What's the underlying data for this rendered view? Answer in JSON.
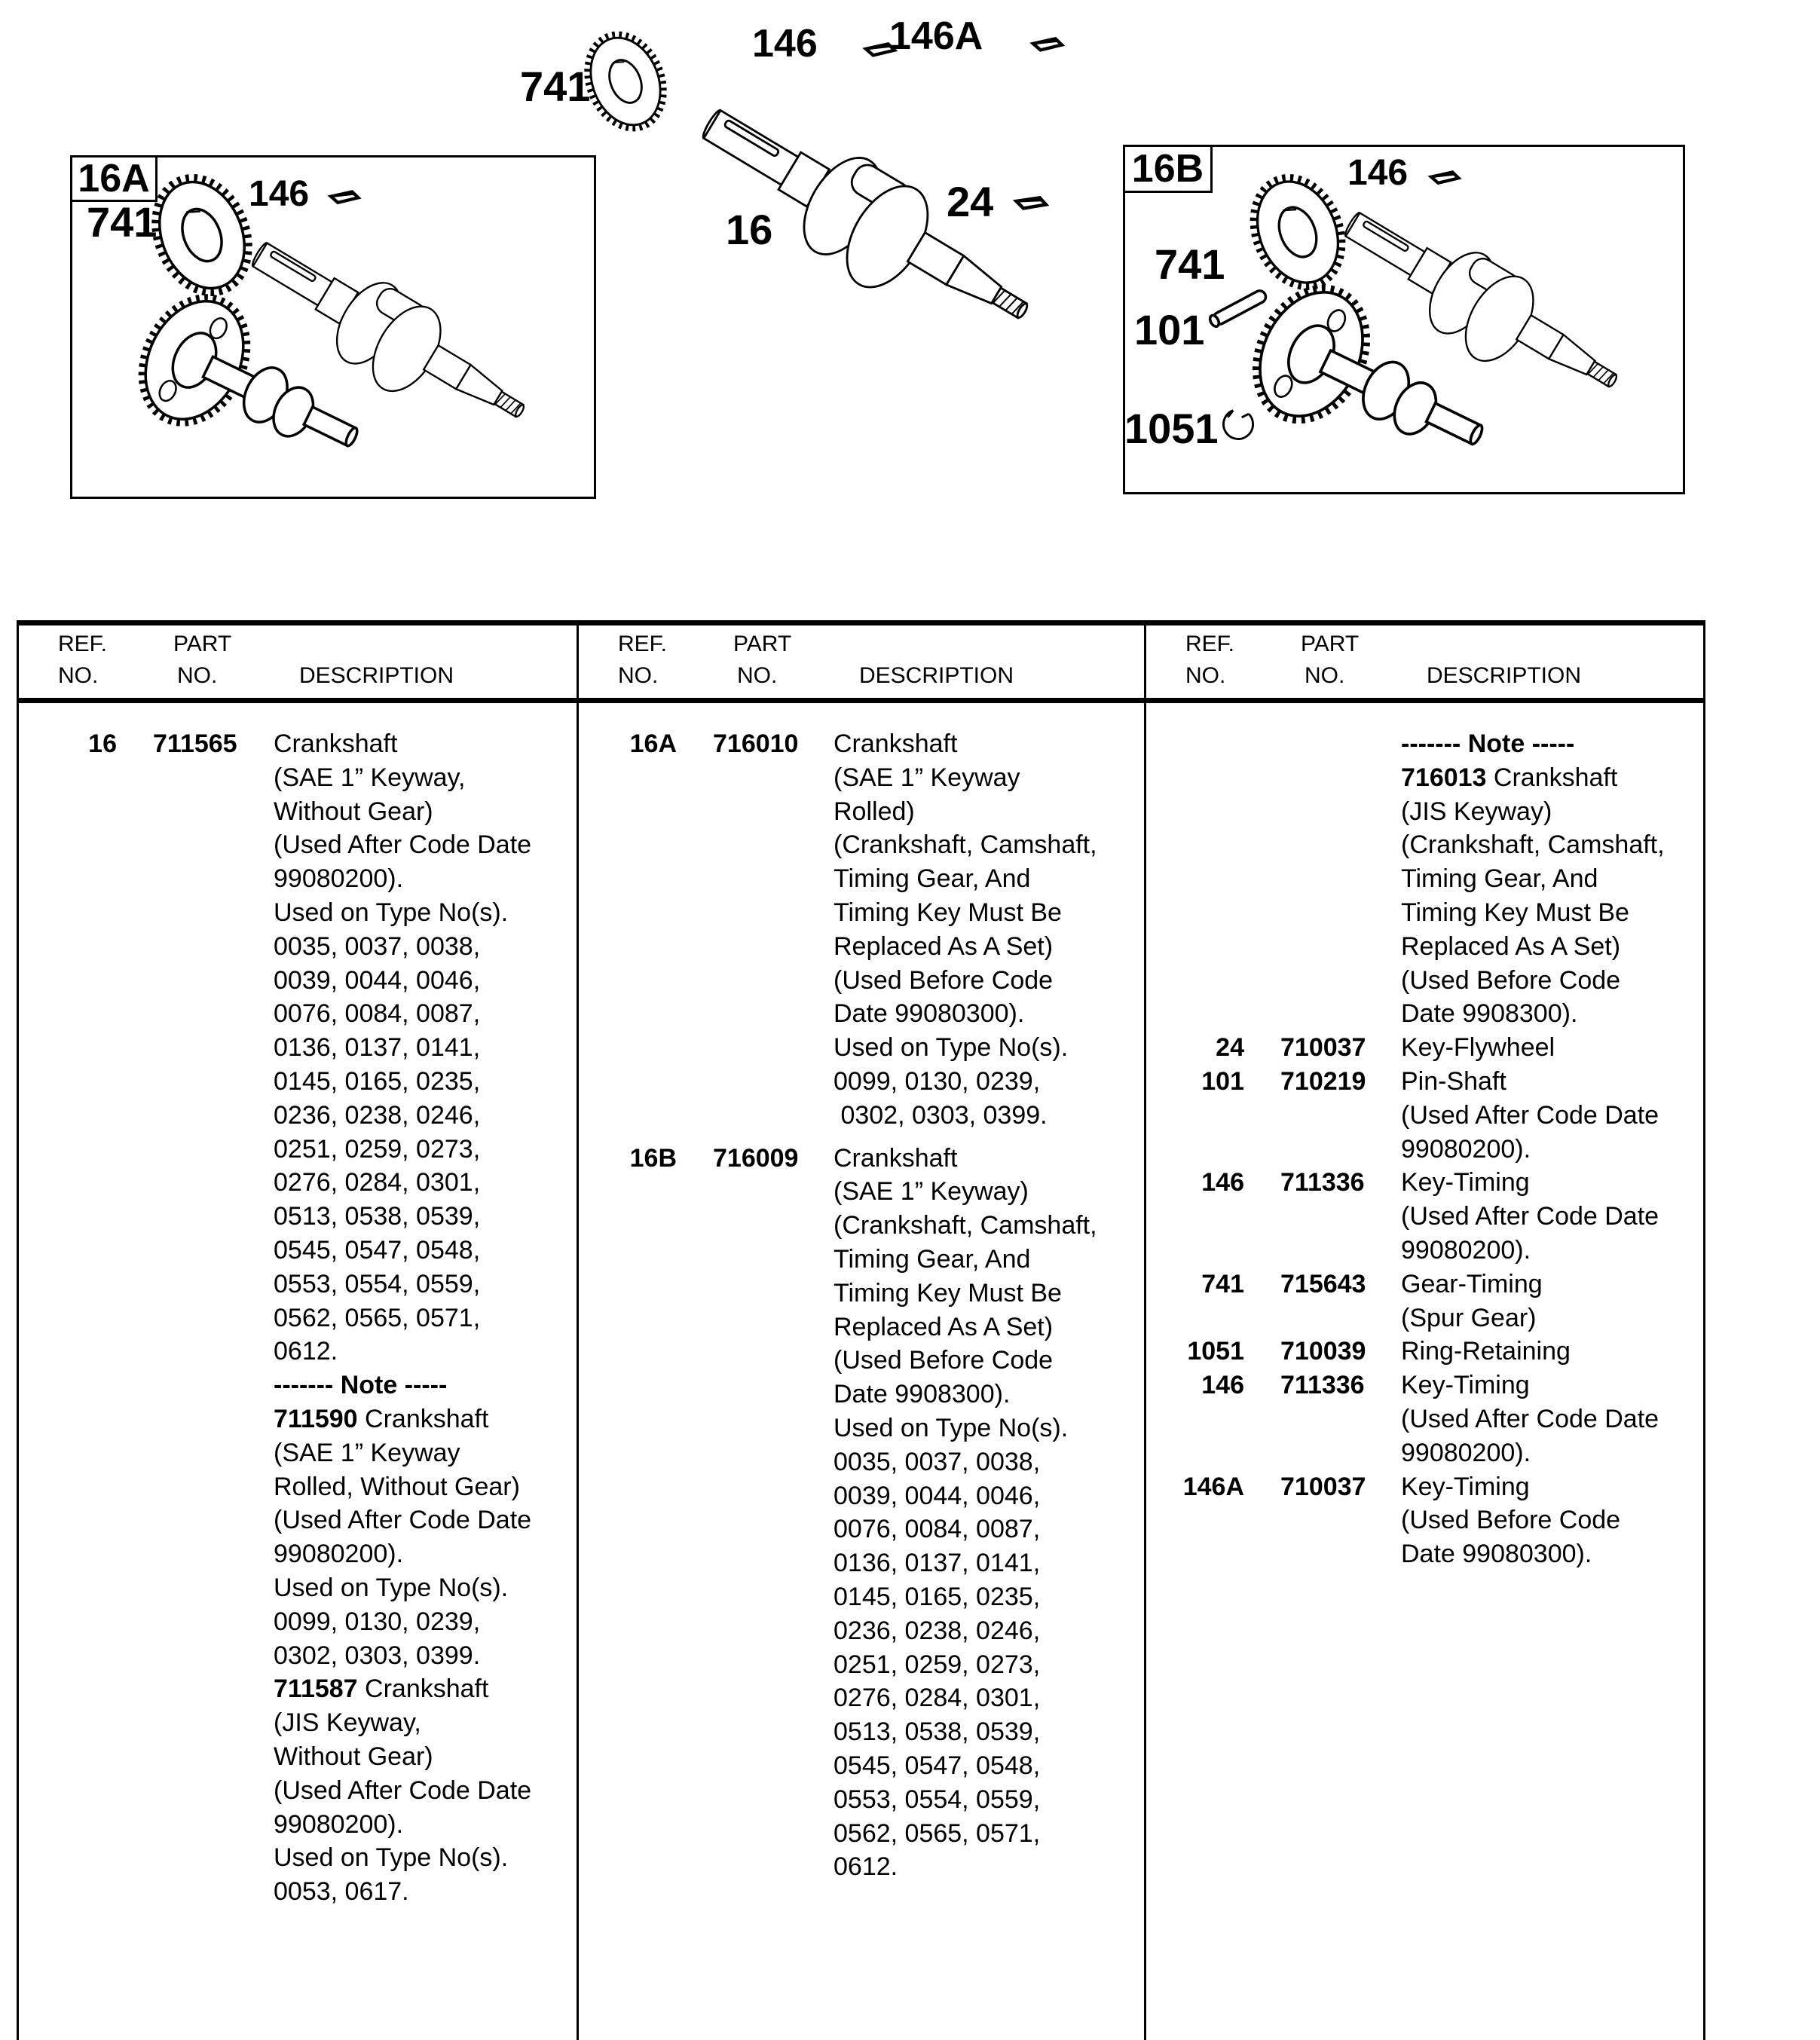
{
  "diagram": {
    "gear_spur_label": "741",
    "key_timing_label": "146",
    "key_timing_a_label": "146A",
    "crankshaft_label": "16",
    "key_flywheel_label": "24",
    "box_16a": {
      "title": "16A",
      "gear_label": "741",
      "key_label": "146"
    },
    "box_16b": {
      "title": "16B",
      "gear_label": "741",
      "key_label": "146",
      "pin_label": "101",
      "ring_label": "1051"
    }
  },
  "table": {
    "header": {
      "ref_line1": "REF.",
      "ref_line2": "NO.",
      "part_line1": "PART",
      "part_line2": "NO.",
      "desc": "DESCRIPTION"
    },
    "panels": [
      {
        "entries": [
          {
            "ref": "16",
            "part": "711565",
            "lines": [
              "Crankshaft",
              "(SAE 1” Keyway,",
              "Without Gear)",
              "(Used After Code Date",
              "99080200).",
              "Used on Type No(s).",
              "0035, 0037, 0038,",
              "0039, 0044, 0046,",
              "0076, 0084, 0087,",
              "0136, 0137, 0141,",
              "0145, 0165, 0235,",
              "0236, 0238, 0246,",
              "0251, 0259, 0273,",
              "0276, 0284, 0301,",
              "0513, 0538, 0539,",
              "0545, 0547, 0548,",
              "0553, 0554, 0559,",
              "0562, 0565, 0571,",
              "0612.",
              {
                "t": "------- Note -----",
                "b": true
              },
              {
                "lead": "711590",
                "t": " Crankshaft"
              },
              "(SAE 1” Keyway",
              "Rolled, Without Gear)",
              "(Used After Code Date",
              "99080200).",
              "Used on Type No(s).",
              "0099, 0130, 0239,",
              "0302, 0303, 0399.",
              {
                "lead": "711587",
                "t": " Crankshaft"
              },
              "(JIS Keyway,",
              "Without Gear)",
              "(Used After Code Date",
              "99080200).",
              "Used on Type No(s).",
              "0053, 0617."
            ]
          }
        ]
      },
      {
        "entries": [
          {
            "ref": "16A",
            "part": "716010",
            "lines": [
              "Crankshaft",
              "(SAE 1” Keyway",
              "Rolled)",
              "(Crankshaft, Camshaft,",
              "Timing Gear, And",
              "Timing Key Must Be",
              "Replaced As A Set)",
              "(Used Before Code",
              "Date 99080300).",
              "Used on Type No(s).",
              "0099, 0130, 0239,",
              " 0302, 0303, 0399."
            ]
          },
          {
            "ref": "16B",
            "part": "716009",
            "gap": 12,
            "lines": [
              "Crankshaft",
              "(SAE 1” Keyway)",
              "(Crankshaft, Camshaft,",
              "Timing Gear, And",
              "Timing Key Must Be",
              "Replaced As A Set)",
              "(Used Before Code",
              "Date 9908300).",
              "Used on Type No(s).",
              "0035, 0037, 0038,",
              "0039, 0044, 0046,",
              "0076, 0084, 0087,",
              "0136, 0137, 0141,",
              "0145, 0165, 0235,",
              "0236, 0238, 0246,",
              "0251, 0259, 0273,",
              "0276, 0284, 0301,",
              "0513, 0538, 0539,",
              "0545, 0547, 0548,",
              "0553, 0554, 0559,",
              "0562, 0565, 0571,",
              "0612."
            ]
          }
        ]
      },
      {
        "entries": [
          {
            "ref": "",
            "part": "",
            "lines": [
              {
                "t": "------- Note -----",
                "b": true
              },
              {
                "lead": "716013",
                "t": " Crankshaft"
              },
              "(JIS Keyway)",
              "(Crankshaft, Camshaft,",
              "Timing Gear, And",
              "Timing Key Must Be",
              "Replaced As A Set)",
              "(Used Before Code",
              "Date 9908300)."
            ]
          },
          {
            "ref": "24",
            "part": "710037",
            "lines": [
              "Key-Flywheel"
            ]
          },
          {
            "ref": "101",
            "part": "710219",
            "lines": [
              "Pin-Shaft",
              "(Used After Code Date",
              "99080200)."
            ]
          },
          {
            "ref": "146",
            "part": "711336",
            "lines": [
              "Key-Timing",
              "(Used After Code Date",
              "99080200)."
            ]
          },
          {
            "ref": "741",
            "part": "715643",
            "lines": [
              "Gear-Timing",
              "(Spur Gear)"
            ]
          },
          {
            "ref": "1051",
            "part": "710039",
            "lines": [
              "Ring-Retaining"
            ]
          },
          {
            "ref": "146",
            "part": "711336",
            "lines": [
              "Key-Timing",
              "(Used After Code Date",
              "99080200)."
            ]
          },
          {
            "ref": "146A",
            "part": "710037",
            "lines": [
              "Key-Timing",
              "(Used Before Code",
              "Date 99080300)."
            ]
          }
        ]
      }
    ]
  }
}
